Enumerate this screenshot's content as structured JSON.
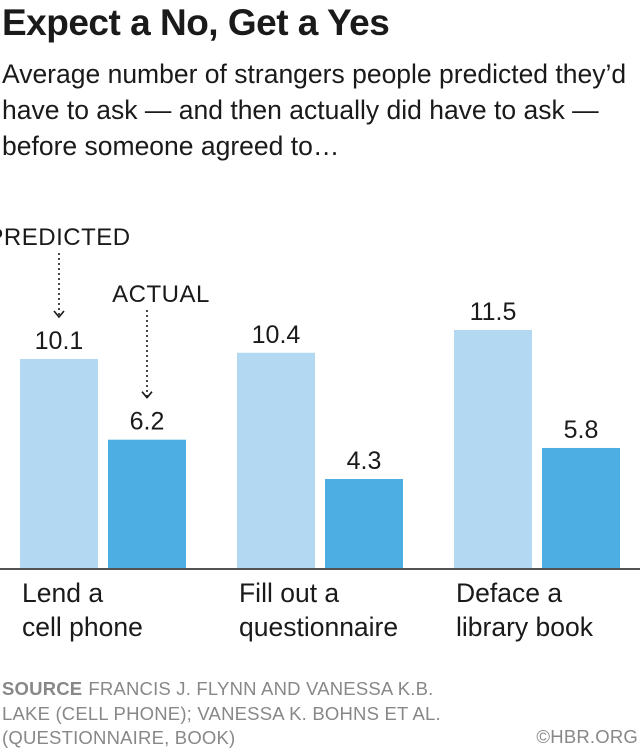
{
  "title": "Expect a No, Get a Yes",
  "subtitle": "Average number of strangers people predicted they’d have to ask — and then actually did have to ask — before someone agreed to…",
  "chart_data": {
    "type": "bar",
    "categories": [
      [
        "Lend a",
        "cell phone"
      ],
      [
        "Fill out a",
        "questionnaire"
      ],
      [
        "Deface a",
        "library book"
      ]
    ],
    "series": [
      {
        "name": "PREDICTED",
        "color": "#b3d8f2",
        "values": [
          10.1,
          10.4,
          11.5
        ]
      },
      {
        "name": "ACTUAL",
        "color": "#4daee3",
        "values": [
          6.2,
          4.3,
          5.8
        ]
      }
    ],
    "value_labels": [
      [
        "10.1",
        "10.4",
        "11.5"
      ],
      [
        "6.2",
        "4.3",
        "5.8"
      ]
    ],
    "ylim": [
      0,
      11.5
    ],
    "grid": false,
    "legend": "annotations with dotted arrows over the first group"
  },
  "footer": {
    "source_label": "SOURCE",
    "source_text": "FRANCIS J. FLYNN AND VANESSA K.B. LAKE (CELL PHONE); VANESSA K. BOHNS ET AL. (QUESTIONNAIRE, BOOK)",
    "credit": "©HBR.ORG"
  }
}
